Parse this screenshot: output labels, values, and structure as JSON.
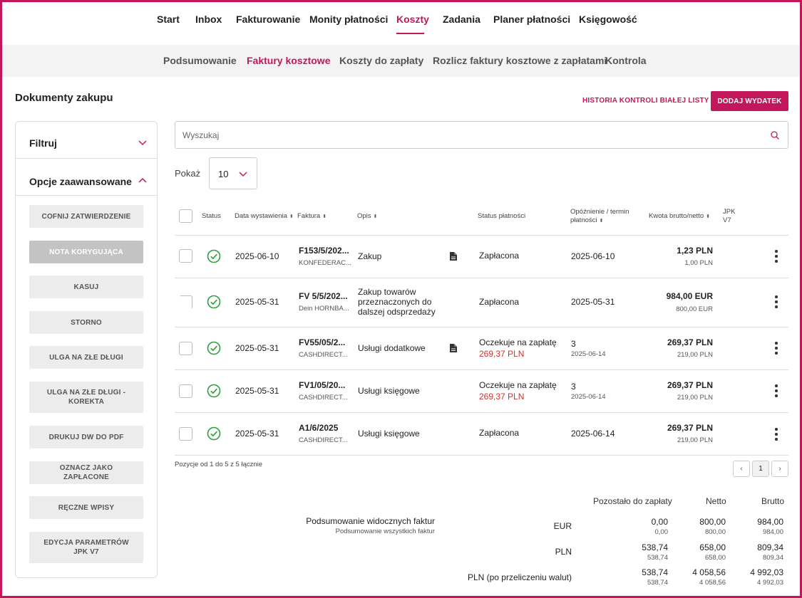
{
  "topnav": {
    "items": [
      "Start",
      "Inbox",
      "Fakturowanie",
      "Monity płatności",
      "Koszty",
      "Zadania",
      "Planer płatności",
      "Księgowość"
    ],
    "active": "Koszty"
  },
  "subnav": {
    "items": [
      "Podsumowanie",
      "Faktury kosztowe",
      "Koszty do zapłaty",
      "Rozlicz faktury kosztowe z zapłatami",
      "Kontrola"
    ],
    "active": "Faktury kosztowe"
  },
  "page": {
    "title": "Dokumenty zakupu",
    "history_link": "HISTORIA KONTROLI BIAŁEJ LISTY",
    "add_button": "DODAJ WYDATEK"
  },
  "sidebar": {
    "filter_label": "Filtruj",
    "advanced_label": "Opcje zaawansowane",
    "buttons": [
      {
        "label": "COFNIJ ZATWIERDZENIE",
        "disabled": false
      },
      {
        "label": "NOTA KORYGUJĄCA",
        "disabled": true
      },
      {
        "label": "KASUJ",
        "disabled": false
      },
      {
        "label": "STORNO",
        "disabled": false
      },
      {
        "label": "ULGA NA ZŁE DŁUGI",
        "disabled": false
      },
      {
        "label": "ULGA NA ZŁE DŁUGI - KOREKTA",
        "disabled": false
      },
      {
        "label": "DRUKUJ DW DO PDF",
        "disabled": false
      },
      {
        "label": "OZNACZ JAKO ZAPŁACONE",
        "disabled": false
      },
      {
        "label": "RĘCZNE WPISY",
        "disabled": false
      },
      {
        "label": "EDYCJA PARAMETRÓW JPK V7",
        "disabled": false
      }
    ]
  },
  "search": {
    "placeholder": "Wyszukaj",
    "value": ""
  },
  "page_size": {
    "label": "Pokaż",
    "value": "10"
  },
  "table": {
    "headers": {
      "status": "Status",
      "date": "Data wystawienia",
      "invoice": "Faktura",
      "desc": "Opis",
      "payment_status": "Status płatności",
      "delay_1": "Opóźnienie / termin",
      "delay_2": "płatności",
      "amount": "Kwota brutto/netto",
      "jpk_1": "JPK",
      "jpk_2": "V7"
    },
    "rows": [
      {
        "date": "2025-06-10",
        "invoice": "F153/5/202...",
        "contractor": "KONFEDERAC...",
        "desc": "Zakup",
        "has_doc": true,
        "payment_status": "Zapłacona",
        "remaining": "",
        "delay_top": "2025-06-10",
        "delay_sub": "",
        "gross": "1,23 PLN",
        "net": "1,00 PLN"
      },
      {
        "date": "2025-05-31",
        "invoice": "FV 5/5/202...",
        "contractor": "Dein HORNBA...",
        "desc": "Zakup towarów przeznaczonych do dalszej odsprzedaży",
        "has_doc": false,
        "payment_status": "Zapłacona",
        "remaining": "",
        "delay_top": "2025-05-31",
        "delay_sub": "",
        "gross": "984,00 EUR",
        "net": "800,00 EUR"
      },
      {
        "date": "2025-05-31",
        "invoice": "FV55/05/2...",
        "contractor": "CASHDIRECT...",
        "desc": "Usługi dodatkowe",
        "has_doc": true,
        "payment_status": "Oczekuje na zapłatę",
        "remaining": "269,37 PLN",
        "delay_top": "3",
        "delay_sub": "2025-06-14",
        "gross": "269,37 PLN",
        "net": "219,00 PLN"
      },
      {
        "date": "2025-05-31",
        "invoice": "FV1/05/20...",
        "contractor": "CASHDIRECT...",
        "desc": "Usługi księgowe",
        "has_doc": false,
        "payment_status": "Oczekuje na zapłatę",
        "remaining": "269,37 PLN",
        "delay_top": "3",
        "delay_sub": "2025-06-14",
        "gross": "269,37 PLN",
        "net": "219,00 PLN"
      },
      {
        "date": "2025-05-31",
        "invoice": "A1/6/2025",
        "contractor": "CASHDIRECT...",
        "desc": "Usługi księgowe",
        "has_doc": false,
        "payment_status": "Zapłacona",
        "remaining": "",
        "delay_top": "2025-06-14",
        "delay_sub": "",
        "gross": "269,37 PLN",
        "net": "219,00 PLN"
      }
    ]
  },
  "pagination": {
    "info": "Pozycje od 1 do 5 z 5 łącznie",
    "prev": "‹",
    "current": "1",
    "next": "›"
  },
  "summary": {
    "col_remaining": "Pozostało do zapłaty",
    "col_net": "Netto",
    "col_gross": "Brutto",
    "visible_label": "Podsumowanie widocznych faktur",
    "all_label": "Podsumowanie wszystkich faktur",
    "rows": [
      {
        "currency": "EUR",
        "remaining": "0,00",
        "remaining_all": "0,00",
        "net": "800,00",
        "net_all": "800,00",
        "gross": "984,00",
        "gross_all": "984,00"
      },
      {
        "currency": "PLN",
        "remaining": "538,74",
        "remaining_all": "538,74",
        "net": "658,00",
        "net_all": "658,00",
        "gross": "809,34",
        "gross_all": "809,34"
      },
      {
        "currency": "PLN (po przeliczeniu walut)",
        "remaining": "538,74",
        "remaining_all": "538,74",
        "net": "4 058,56",
        "net_all": "4 058,56",
        "gross": "4 992,03",
        "gross_all": "4 992,03"
      }
    ]
  },
  "colors": {
    "accent": "#c2185b",
    "success": "#2e9e3e",
    "overdue": "#d32f2f"
  },
  "icons": {
    "status": "check-circle-icon",
    "document": "document-icon",
    "search": "search-icon",
    "menu": "kebab-menu-icon"
  }
}
